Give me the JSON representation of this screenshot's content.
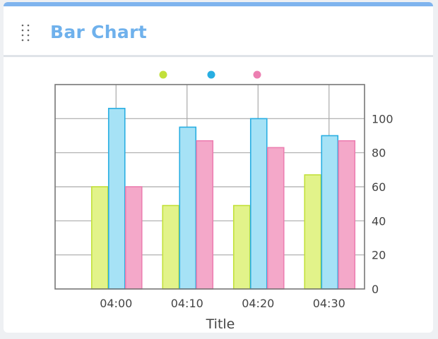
{
  "widget": {
    "title": "Bar Chart"
  },
  "chart_data": {
    "type": "bar",
    "title": "",
    "xlabel": "Title",
    "ylabel": "",
    "categories": [
      "04:00",
      "04:10",
      "04:20",
      "04:30"
    ],
    "series": [
      {
        "values": [
          60,
          49,
          49,
          67
        ],
        "fill": "#e2f38a",
        "stroke": "#c2e03a"
      },
      {
        "values": [
          106,
          95,
          100,
          90
        ],
        "fill": "#a6e2f6",
        "stroke": "#28aee2"
      },
      {
        "values": [
          60,
          87,
          83,
          87
        ],
        "fill": "#f4a8c9",
        "stroke": "#ec7fb1"
      }
    ],
    "ylim": [
      0,
      120
    ],
    "yticks": [
      0,
      20,
      40,
      60,
      80,
      100
    ],
    "y_axis_side": "right",
    "grid": true,
    "legend": "top-center"
  }
}
